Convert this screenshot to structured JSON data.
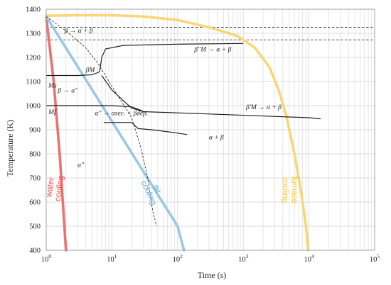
{
  "chart_data": {
    "type": "line",
    "xlabel": "Time (s)",
    "ylabel": "Temperature (K)",
    "x_scale": "log",
    "xlim": [
      1,
      100000
    ],
    "ylim": [
      400,
      1400
    ],
    "grid": true,
    "x_ticks": [
      {
        "value": 1,
        "base": "10",
        "exp": "0"
      },
      {
        "value": 10,
        "base": "10",
        "exp": "1"
      },
      {
        "value": 100,
        "base": "10",
        "exp": "2"
      },
      {
        "value": 1000,
        "base": "10",
        "exp": "3"
      },
      {
        "value": 10000,
        "base": "10",
        "exp": "4"
      },
      {
        "value": 100000,
        "base": "10",
        "exp": "5"
      }
    ],
    "y_ticks": [
      "400",
      "500",
      "600",
      "700",
      "800",
      "900",
      "1000",
      "1100",
      "1200",
      "1300",
      "1400"
    ],
    "y_tick_values": [
      400,
      500,
      600,
      700,
      800,
      900,
      1000,
      1100,
      1200,
      1300,
      1400
    ],
    "reference_lines": [
      {
        "y": 1325,
        "style": "dashed"
      },
      {
        "y": 1273,
        "style": "dashed"
      }
    ],
    "series": [
      {
        "name": "water cooling",
        "color": "#f07070",
        "points": [
          [
            1,
            1370
          ],
          [
            1.3,
            1100
          ],
          [
            1.6,
            800
          ],
          [
            2.0,
            400
          ]
        ]
      },
      {
        "name": "air cooling",
        "color": "#9cc8e6",
        "points": [
          [
            1,
            1370
          ],
          [
            10,
            935
          ],
          [
            100,
            500
          ],
          [
            125,
            400
          ]
        ]
      },
      {
        "name": "furnace cooling",
        "color": "#fad67a",
        "points": [
          [
            1,
            1373
          ],
          [
            3,
            1375
          ],
          [
            10,
            1375
          ],
          [
            30,
            1370
          ],
          [
            100,
            1355
          ],
          [
            300,
            1325
          ],
          [
            800,
            1290
          ],
          [
            1500,
            1240
          ],
          [
            2500,
            1160
          ],
          [
            3500,
            1060
          ],
          [
            4500,
            960
          ],
          [
            6000,
            800
          ],
          [
            7500,
            650
          ],
          [
            9000,
            500
          ],
          [
            9800,
            400
          ]
        ]
      }
    ],
    "boundary_lines": [
      {
        "points": [
          [
            1,
            1125
          ],
          [
            3,
            1125
          ],
          [
            5,
            1128
          ],
          [
            6.5,
            1140
          ],
          [
            7,
            1200
          ],
          [
            8,
            1235
          ],
          [
            15,
            1250
          ],
          [
            100,
            1255
          ],
          [
            1000,
            1258
          ]
        ]
      },
      {
        "points": [
          [
            7,
            1125
          ],
          [
            10,
            1065
          ],
          [
            15,
            1020
          ],
          [
            20,
            990
          ],
          [
            30,
            975
          ],
          [
            100,
            970
          ],
          [
            1000,
            960
          ],
          [
            10000,
            950
          ],
          [
            15000,
            945
          ]
        ]
      },
      {
        "points": [
          [
            1,
            1000
          ],
          [
            10,
            1000
          ],
          [
            20,
            995
          ],
          [
            28,
            980
          ],
          [
            30,
            975
          ]
        ]
      },
      {
        "points": [
          [
            7.5,
            930
          ],
          [
            20,
            930
          ],
          [
            25,
            905
          ],
          [
            40,
            900
          ],
          [
            80,
            890
          ],
          [
            140,
            880
          ]
        ]
      },
      {
        "points": [
          [
            1,
            1370
          ],
          [
            2,
            1310
          ],
          [
            4,
            1240
          ],
          [
            6,
            1180
          ],
          [
            10,
            1080
          ],
          [
            20,
            950
          ],
          [
            28,
            820
          ],
          [
            35,
            700
          ],
          [
            42,
            560
          ],
          [
            48,
            500
          ]
        ],
        "style": "dashed"
      }
    ],
    "annotations": [
      {
        "id": "beta-ab",
        "text": "β → α + β",
        "x": 1.9,
        "y": 1303
      },
      {
        "id": "bm2",
        "text": "β′′M → α + β",
        "x": 180,
        "y": 1225
      },
      {
        "id": "betaM",
        "text": "βM",
        "x": 4.0,
        "y": 1140
      },
      {
        "id": "Ms",
        "text": "Ms",
        "x": 1.08,
        "y": 1075
      },
      {
        "id": "beta-alpha",
        "text": "β → α′′",
        "x": 1.5,
        "y": 1055
      },
      {
        "id": "bm1",
        "text": "β′M → α + β",
        "x": 1100,
        "y": 985
      },
      {
        "id": "Mf",
        "text": "Mf",
        "x": 1.08,
        "y": 965
      },
      {
        "id": "asec",
        "text": "α′′ → αsec. + βdep.",
        "x": 5.5,
        "y": 960
      },
      {
        "id": "ab",
        "text": "α + β",
        "x": 300,
        "y": 860
      },
      {
        "id": "alpha-dd",
        "text": "α′′",
        "x": 3.0,
        "y": 745
      }
    ],
    "curve_labels": [
      {
        "id": "water",
        "lines": [
          "water",
          "cooling"
        ],
        "color": "#f04a4a",
        "x": 1.25,
        "y": 660,
        "angle": -82
      },
      {
        "id": "air",
        "lines": [
          "air",
          "cooling"
        ],
        "color": "#5da8dc",
        "x": 45,
        "y": 650,
        "angle": 65
      },
      {
        "id": "furnace",
        "lines": [
          "furnace",
          "cooling"
        ],
        "color": "#f5c431",
        "x": 5500,
        "y": 650,
        "angle": 90
      }
    ]
  }
}
